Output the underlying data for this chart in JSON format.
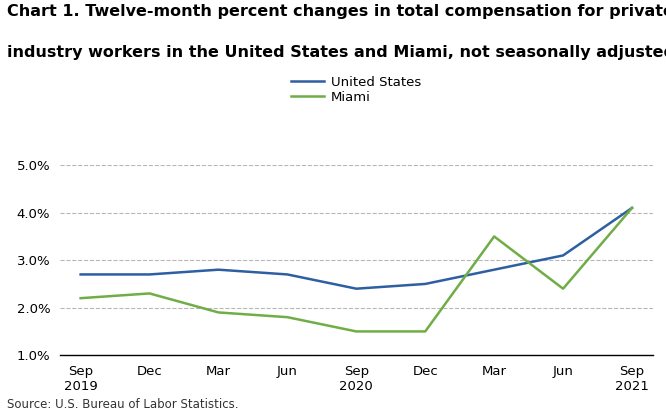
{
  "title_line1": "Chart 1. Twelve-month percent changes in total compensation for private",
  "title_line2": "industry workers in the United States and Miami, not seasonally adjusted",
  "source": "Source: U.S. Bureau of Labor Statistics.",
  "x_labels": [
    "Sep\n2019",
    "Dec",
    "Mar",
    "Jun",
    "Sep\n2020",
    "Dec",
    "Mar",
    "Jun",
    "Sep\n2021"
  ],
  "us_values": [
    2.7,
    2.7,
    2.8,
    2.7,
    2.4,
    2.5,
    2.8,
    3.1,
    4.1
  ],
  "miami_values": [
    2.2,
    2.3,
    1.9,
    1.8,
    1.5,
    1.5,
    3.5,
    2.4,
    4.1
  ],
  "us_color": "#2e5fa3",
  "miami_color": "#70ad47",
  "ylim": [
    1.0,
    5.0
  ],
  "yticks": [
    1.0,
    2.0,
    3.0,
    4.0,
    5.0
  ],
  "grid_color": "#aaaaaa",
  "background_color": "#ffffff",
  "legend_labels": [
    "United States",
    "Miami"
  ],
  "title_fontsize": 11.5,
  "axis_fontsize": 9.5,
  "source_fontsize": 8.5,
  "legend_fontsize": 9.5
}
